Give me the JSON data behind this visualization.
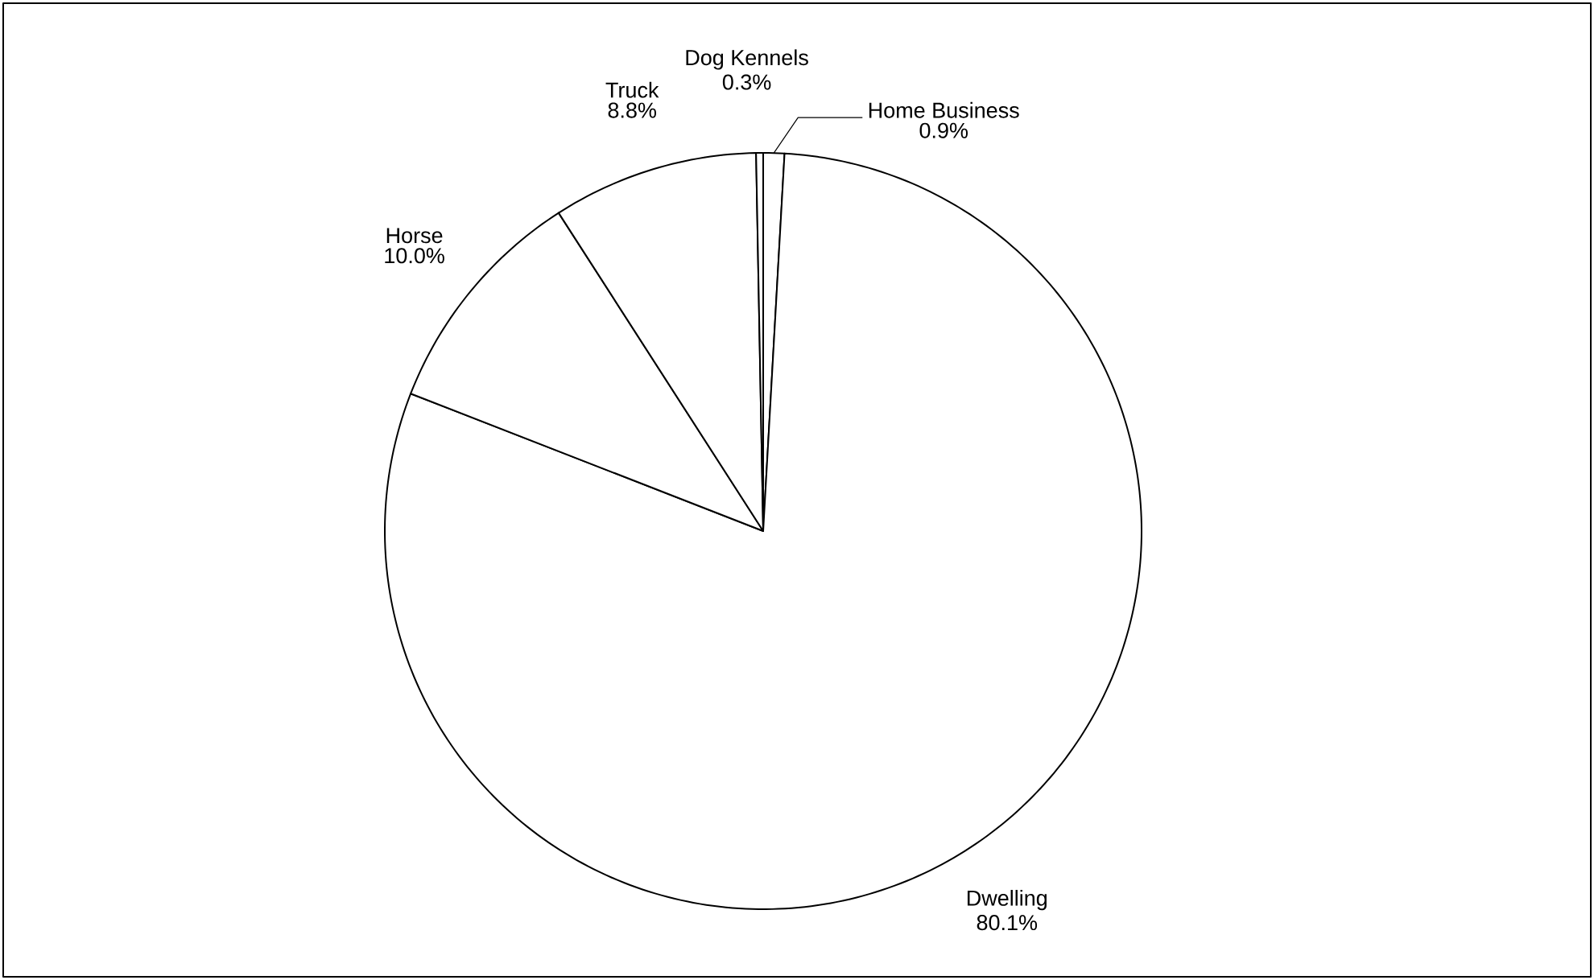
{
  "chart_data": {
    "type": "pie",
    "categories": [
      "Home Business",
      "Dwelling",
      "Horse",
      "Truck",
      "Dog Kennels"
    ],
    "values": [
      0.9,
      80.1,
      10.0,
      8.8,
      0.3
    ],
    "value_labels": [
      "0.9%",
      "80.1%",
      "10.0%",
      "8.8%",
      "0.3%"
    ],
    "colors": [
      "#ffffff",
      "#ffffff",
      "#ffffff",
      "#ffffff",
      "#ffffff"
    ]
  }
}
